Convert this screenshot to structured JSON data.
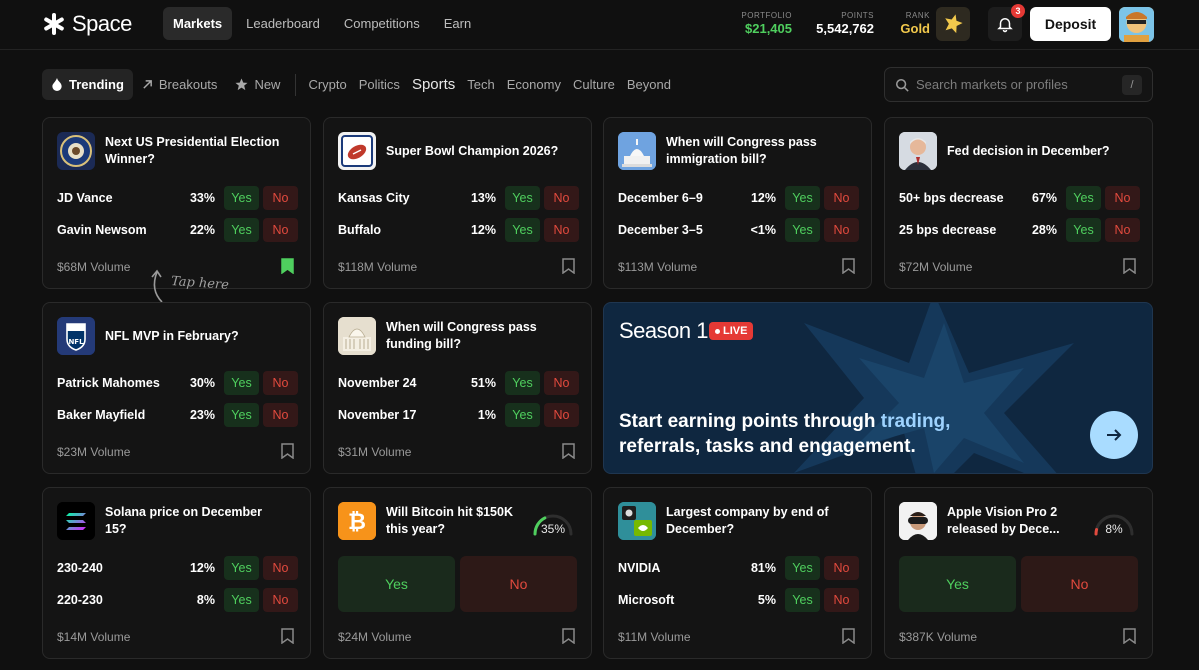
{
  "brand": {
    "name": "Space"
  },
  "nav": [
    {
      "label": "Markets",
      "active": true
    },
    {
      "label": "Leaderboard",
      "active": false
    },
    {
      "label": "Competitions",
      "active": false
    },
    {
      "label": "Earn",
      "active": false
    }
  ],
  "stats": {
    "portfolio_label": "PORTFOLIO",
    "portfolio_value": "$21,405",
    "points_label": "POINTS",
    "points_value": "5,542,762",
    "rank_label": "RANK",
    "rank_value": "Gold"
  },
  "notifications": {
    "count": "3"
  },
  "deposit_label": "Deposit",
  "filters": {
    "chips": [
      {
        "label": "Trending",
        "icon": "flame-icon",
        "active": true
      },
      {
        "label": "Breakouts",
        "icon": "arrow-up-right-icon",
        "active": false
      },
      {
        "label": "New",
        "icon": "star-icon",
        "active": false
      }
    ],
    "categories": [
      {
        "label": "Crypto",
        "active": false
      },
      {
        "label": "Politics",
        "active": false
      },
      {
        "label": "Sports",
        "active": true
      },
      {
        "label": "Tech",
        "active": false
      },
      {
        "label": "Economy",
        "active": false
      },
      {
        "label": "Culture",
        "active": false
      },
      {
        "label": "Beyond",
        "active": false
      }
    ]
  },
  "search": {
    "placeholder": "Search markets or profiles",
    "shortcut": "/"
  },
  "buttons": {
    "yes": "Yes",
    "no": "No"
  },
  "cards": [
    {
      "title": "Next US Presidential Election Winner?",
      "icon": "presidential-seal-icon",
      "outcomes": [
        {
          "label": "JD Vance",
          "pct": "33%"
        },
        {
          "label": "Gavin Newsom",
          "pct": "22%"
        }
      ],
      "volume": "$68M Volume",
      "bookmarked": true
    },
    {
      "title": "Super Bowl Champion 2026?",
      "icon": "football-icon",
      "outcomes": [
        {
          "label": "Kansas City",
          "pct": "13%"
        },
        {
          "label": "Buffalo",
          "pct": "12%"
        }
      ],
      "volume": "$118M Volume",
      "bookmarked": false
    },
    {
      "title": "When will Congress pass immigration bill?",
      "icon": "capitol-icon",
      "outcomes": [
        {
          "label": "December 6–9",
          "pct": "12%"
        },
        {
          "label": "December 3–5",
          "pct": "<1%"
        }
      ],
      "volume": "$113M Volume",
      "bookmarked": false
    },
    {
      "title": "Fed decision in December?",
      "icon": "fed-chair-icon",
      "outcomes": [
        {
          "label": "50+ bps decrease",
          "pct": "67%"
        },
        {
          "label": "25 bps decrease",
          "pct": "28%"
        }
      ],
      "volume": "$72M Volume",
      "bookmarked": false
    },
    {
      "title": "NFL MVP in February?",
      "icon": "nfl-shield-icon",
      "outcomes": [
        {
          "label": "Patrick Mahomes",
          "pct": "30%"
        },
        {
          "label": "Baker Mayfield",
          "pct": "23%"
        }
      ],
      "volume": "$23M Volume",
      "bookmarked": false
    },
    {
      "title": "When will Congress pass funding bill?",
      "icon": "capitol-icon",
      "outcomes": [
        {
          "label": "November 24",
          "pct": "51%"
        },
        {
          "label": "November 17",
          "pct": "1%"
        }
      ],
      "volume": "$31M Volume",
      "bookmarked": false
    },
    {
      "title": "Solana price on December 15?",
      "icon": "solana-icon",
      "outcomes": [
        {
          "label": "230-240",
          "pct": "12%"
        },
        {
          "label": "220-230",
          "pct": "8%"
        }
      ],
      "volume": "$14M Volume",
      "bookmarked": false
    },
    {
      "title": "Will Bitcoin hit $150K this year?",
      "icon": "bitcoin-icon",
      "gauge": "35%",
      "gauge_value": 0.35,
      "volume": "$24M Volume",
      "bookmarked": false
    },
    {
      "title": "Largest company by end of December?",
      "icon": "apple-nvidia-icon",
      "outcomes": [
        {
          "label": "NVIDIA",
          "pct": "81%"
        },
        {
          "label": "Microsoft",
          "pct": "5%"
        }
      ],
      "volume": "$11M Volume",
      "bookmarked": false
    },
    {
      "title": "Apple Vision Pro 2 released by Dece...",
      "icon": "vision-pro-icon",
      "gauge": "8%",
      "gauge_value": 0.08,
      "volume": "$387K Volume",
      "bookmarked": false
    }
  ],
  "hint": {
    "text": "Tap here"
  },
  "promo": {
    "title": "Season 1",
    "live_label": "LIVE",
    "text_start": "Start earning points through ",
    "text_highlight": "trading,",
    "text_line2": "referrals, tasks and engagement."
  },
  "colors": {
    "background": "#101010",
    "card": "#141414",
    "yes": "#4fcf5e",
    "no": "#e24a3e",
    "gold": "#f2c94c",
    "portfolio_green": "#4fcf5e",
    "promo_bg": "#0f2740",
    "promo_highlight": "#9ed3ff"
  }
}
